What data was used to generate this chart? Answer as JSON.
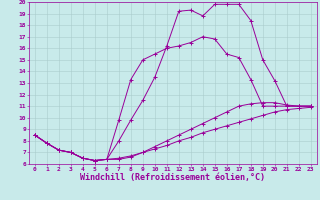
{
  "title": "",
  "xlabel": "Windchill (Refroidissement éolien,°C)",
  "ylabel": "",
  "background_color": "#c8eaea",
  "line_color": "#990099",
  "grid_color": "#aacccc",
  "xlim": [
    -0.5,
    23.5
  ],
  "ylim": [
    6,
    20
  ],
  "xticks": [
    0,
    1,
    2,
    3,
    4,
    5,
    6,
    7,
    8,
    9,
    10,
    11,
    12,
    13,
    14,
    15,
    16,
    17,
    18,
    19,
    20,
    21,
    22,
    23
  ],
  "yticks": [
    6,
    7,
    8,
    9,
    10,
    11,
    12,
    13,
    14,
    15,
    16,
    17,
    18,
    19,
    20
  ],
  "x": [
    0,
    1,
    2,
    3,
    4,
    5,
    6,
    7,
    8,
    9,
    10,
    11,
    12,
    13,
    14,
    15,
    16,
    17,
    18,
    19,
    20,
    21,
    22,
    23
  ],
  "series1": [
    8.5,
    7.8,
    7.2,
    7.0,
    6.5,
    6.3,
    6.4,
    6.4,
    6.6,
    7.0,
    7.3,
    7.6,
    8.0,
    8.3,
    8.7,
    9.0,
    9.3,
    9.6,
    9.9,
    10.2,
    10.5,
    10.7,
    10.8,
    10.9
  ],
  "series2": [
    8.5,
    7.8,
    7.2,
    7.0,
    6.5,
    6.3,
    6.4,
    8.0,
    9.8,
    11.5,
    13.5,
    16.2,
    19.2,
    19.3,
    18.8,
    19.8,
    19.8,
    19.8,
    18.4,
    15.0,
    13.2,
    11.0,
    11.0,
    11.0
  ],
  "series3": [
    8.5,
    7.8,
    7.2,
    7.0,
    6.5,
    6.3,
    6.4,
    9.8,
    13.3,
    15.0,
    15.5,
    16.0,
    16.2,
    16.5,
    17.0,
    16.8,
    15.5,
    15.2,
    13.3,
    11.0,
    11.0,
    11.0,
    11.0,
    11.0
  ],
  "series4": [
    8.5,
    7.8,
    7.2,
    7.0,
    6.5,
    6.3,
    6.4,
    6.5,
    6.7,
    7.0,
    7.5,
    8.0,
    8.5,
    9.0,
    9.5,
    10.0,
    10.5,
    11.0,
    11.2,
    11.3,
    11.3,
    11.1,
    11.0,
    11.0
  ],
  "tick_fontsize": 4.5,
  "xlabel_fontsize": 6.0,
  "marker": "+"
}
